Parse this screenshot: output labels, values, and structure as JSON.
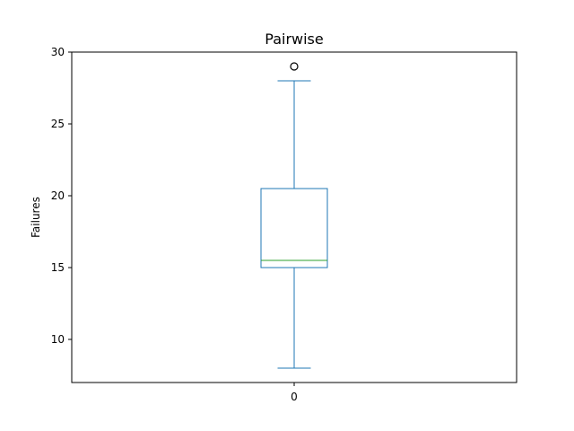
{
  "chart_data": {
    "type": "box",
    "title": "Pairwise",
    "xlabel": "",
    "ylabel": "Failures",
    "ylim": [
      7,
      30
    ],
    "yticks": [
      10,
      15,
      20,
      25,
      30
    ],
    "categories": [
      "0"
    ],
    "boxes": [
      {
        "category": "0",
        "whisker_low": 8,
        "q1": 15,
        "median": 15.5,
        "q3": 20.5,
        "whisker_high": 28,
        "outliers": [
          29
        ]
      }
    ],
    "grid": false,
    "colors": {
      "box": "#1f77b4",
      "median": "#2ca02c",
      "outlier": "#000000",
      "axes": "#000000"
    }
  }
}
